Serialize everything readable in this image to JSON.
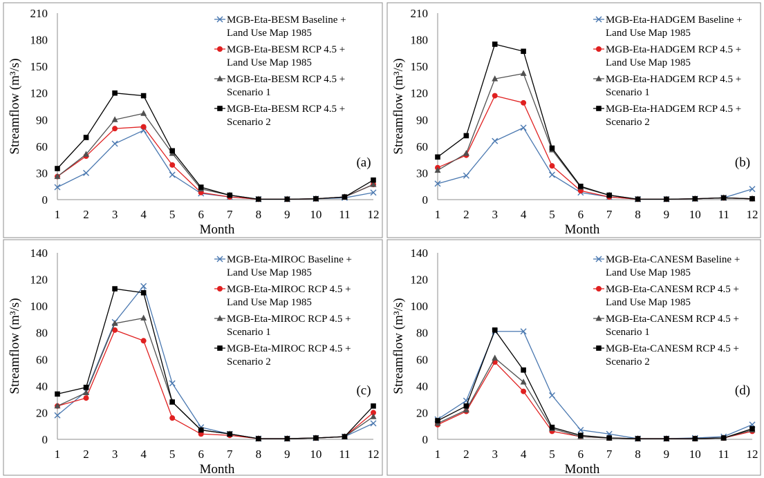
{
  "figure": {
    "colors": {
      "baseline": "#4a78b0",
      "rcp45_1985": "#e02020",
      "scenario1": "#505050",
      "scenario2": "#000000",
      "axis": "#8c8c8c",
      "border": "#8c8c8c"
    }
  },
  "chart_data": [
    {
      "type": "line",
      "panel_label": "(a)",
      "xlabel": "Month",
      "ylabel": "Streamflow (m³/s)",
      "ylim": [
        0,
        210
      ],
      "yticks": [
        0,
        30,
        60,
        90,
        120,
        150,
        180,
        210
      ],
      "x": [
        1,
        2,
        3,
        4,
        5,
        6,
        7,
        8,
        9,
        10,
        11,
        12
      ],
      "legend_position": "top-right",
      "series": [
        {
          "name": "MGB-Eta-BESM Baseline + Land Use Map 1985",
          "legend_lines": [
            "MGB-Eta-BESM Baseline +",
            "Land Use Map 1985"
          ],
          "marker": "x",
          "color": "#4a78b0",
          "values": [
            14,
            30,
            63,
            78,
            28,
            7,
            3,
            0.5,
            0.5,
            1,
            2,
            8
          ]
        },
        {
          "name": "MGB-Eta-BESM RCP 4.5 + Land Use Map 1985",
          "legend_lines": [
            "MGB-Eta-BESM RCP 4.5 +",
            "Land Use Map 1985"
          ],
          "marker": "circle",
          "color": "#e02020",
          "values": [
            26,
            49,
            80,
            82,
            39,
            8,
            3,
            0.5,
            0.5,
            1,
            3,
            17
          ]
        },
        {
          "name": "MGB-Eta-BESM RCP 4.5 + Scenario 1",
          "legend_lines": [
            "MGB-Eta-BESM RCP 4.5 +",
            "Scenario 1"
          ],
          "marker": "triangle",
          "color": "#505050",
          "values": [
            26,
            51,
            90,
            97,
            52,
            12,
            5,
            0.5,
            0.5,
            1,
            3,
            17
          ]
        },
        {
          "name": "MGB-Eta-BESM RCP 4.5 + Scenario 2",
          "legend_lines": [
            "MGB-Eta-BESM RCP 4.5 +",
            "Scenario 2"
          ],
          "marker": "square",
          "color": "#000000",
          "values": [
            35,
            70,
            120,
            117,
            55,
            14,
            5,
            0.5,
            0.5,
            1,
            3,
            22
          ]
        }
      ]
    },
    {
      "type": "line",
      "panel_label": "(b)",
      "xlabel": "Month",
      "ylabel": "Streamflow (m³/s)",
      "ylim": [
        0,
        210
      ],
      "yticks": [
        0,
        30,
        60,
        90,
        120,
        150,
        180,
        210
      ],
      "x": [
        1,
        2,
        3,
        4,
        5,
        6,
        7,
        8,
        9,
        10,
        11,
        12
      ],
      "legend_position": "top-right",
      "series": [
        {
          "name": "MGB-Eta-HADGEM Baseline + Land Use Map 1985",
          "legend_lines": [
            "MGB-Eta-HADGEM Baseline +",
            "Land Use Map 1985"
          ],
          "marker": "x",
          "color": "#4a78b0",
          "values": [
            18,
            27,
            66,
            81,
            28,
            8,
            3,
            0.5,
            0.5,
            1,
            2,
            12
          ]
        },
        {
          "name": "MGB-Eta-HADGEM RCP 4.5 + Land Use Map 1985",
          "legend_lines": [
            "MGB-Eta-HADGEM RCP 4.5 +",
            "Land Use Map 1985"
          ],
          "marker": "circle",
          "color": "#e02020",
          "values": [
            36,
            50,
            117,
            109,
            38,
            10,
            3,
            0.5,
            0.5,
            1,
            2,
            1
          ]
        },
        {
          "name": "MGB-Eta-HADGEM RCP 4.5 + Scenario 1",
          "legend_lines": [
            "MGB-Eta-HADGEM RCP 4.5 +",
            "Scenario 1"
          ],
          "marker": "triangle",
          "color": "#505050",
          "values": [
            33,
            52,
            136,
            142,
            56,
            14,
            5,
            0.5,
            0.5,
            1,
            2,
            1
          ]
        },
        {
          "name": "MGB-Eta-HADGEM RCP 4.5 + Scenario 2",
          "legend_lines": [
            "MGB-Eta-HADGEM RCP 4.5 +",
            "Scenario 2"
          ],
          "marker": "square",
          "color": "#000000",
          "values": [
            48,
            72,
            175,
            167,
            58,
            15,
            5,
            0.5,
            0.5,
            1,
            2,
            1
          ]
        }
      ]
    },
    {
      "type": "line",
      "panel_label": "(c)",
      "xlabel": "Month",
      "ylabel": "Streamflow (m³/s)",
      "ylim": [
        0,
        140
      ],
      "yticks": [
        0,
        20,
        40,
        60,
        80,
        100,
        120,
        140
      ],
      "x": [
        1,
        2,
        3,
        4,
        5,
        6,
        7,
        8,
        9,
        10,
        11,
        12
      ],
      "legend_position": "top-right",
      "series": [
        {
          "name": "MGB-Eta-MIROC Baseline + Land Use Map 1985",
          "legend_lines": [
            "MGB-Eta-MIROC Baseline +",
            "Land Use Map 1985"
          ],
          "marker": "x",
          "color": "#4a78b0",
          "values": [
            18,
            36,
            88,
            115,
            42,
            9,
            4,
            0.5,
            0.5,
            1,
            2,
            12
          ]
        },
        {
          "name": "MGB-Eta-MIROC RCP 4.5 + Land Use Map 1985",
          "legend_lines": [
            "MGB-Eta-MIROC RCP 4.5 +",
            "Land Use Map 1985"
          ],
          "marker": "circle",
          "color": "#e02020",
          "values": [
            25,
            31,
            82,
            74,
            16,
            4,
            3,
            0.5,
            0.5,
            1,
            2,
            20
          ]
        },
        {
          "name": "MGB-Eta-MIROC RCP 4.5 + Scenario 1",
          "legend_lines": [
            "MGB-Eta-MIROC RCP 4.5 +",
            "Scenario 1"
          ],
          "marker": "triangle",
          "color": "#505050",
          "values": [
            25,
            35,
            87,
            91,
            28,
            7,
            4,
            0.5,
            0.5,
            1,
            2,
            17
          ]
        },
        {
          "name": "MGB-Eta-MIROC RCP 4.5 + Scenario 2",
          "legend_lines": [
            "MGB-Eta-MIROC RCP 4.5 +",
            "Scenario 2"
          ],
          "marker": "square",
          "color": "#000000",
          "values": [
            34,
            39,
            113,
            110,
            28,
            7,
            4,
            0.5,
            0.5,
            1,
            2,
            25
          ]
        }
      ]
    },
    {
      "type": "line",
      "panel_label": "(d)",
      "xlabel": "Month",
      "ylabel": "Streamflow (m³/s)",
      "ylim": [
        0,
        140
      ],
      "yticks": [
        0,
        20,
        40,
        60,
        80,
        100,
        120,
        140
      ],
      "x": [
        1,
        2,
        3,
        4,
        5,
        6,
        7,
        8,
        9,
        10,
        11,
        12
      ],
      "legend_position": "top-right",
      "series": [
        {
          "name": "MGB-Eta-CANESM Baseline + Land Use Map 1985",
          "legend_lines": [
            "MGB-Eta-CANESM Baseline +",
            "Land Use Map 1985"
          ],
          "marker": "x",
          "color": "#4a78b0",
          "values": [
            15,
            29,
            81,
            81,
            33,
            7,
            4,
            0.5,
            0.5,
            1,
            2,
            11
          ]
        },
        {
          "name": "MGB-Eta-CANESM RCP 4.5 + Land Use Map 1985",
          "legend_lines": [
            "MGB-Eta-CANESM RCP 4.5 +",
            "Land Use Map 1985"
          ],
          "marker": "circle",
          "color": "#e02020",
          "values": [
            11,
            21,
            58,
            36,
            6,
            2,
            1,
            0.5,
            0.5,
            0.5,
            1,
            6
          ]
        },
        {
          "name": "MGB-Eta-CANESM RCP 4.5 + Scenario 1",
          "legend_lines": [
            "MGB-Eta-CANESM RCP 4.5 +",
            "Scenario 1"
          ],
          "marker": "triangle",
          "color": "#505050",
          "values": [
            12,
            22,
            61,
            43,
            8,
            2,
            1,
            0.5,
            0.5,
            0.5,
            1,
            7
          ]
        },
        {
          "name": "MGB-Eta-CANESM RCP 4.5 + Scenario 2",
          "legend_lines": [
            "MGB-Eta-CANESM RCP 4.5 +",
            "Scenario 2"
          ],
          "marker": "square",
          "color": "#000000",
          "values": [
            14,
            25,
            82,
            52,
            9,
            3,
            1,
            0.5,
            0.5,
            0.5,
            1,
            8
          ]
        }
      ]
    }
  ]
}
